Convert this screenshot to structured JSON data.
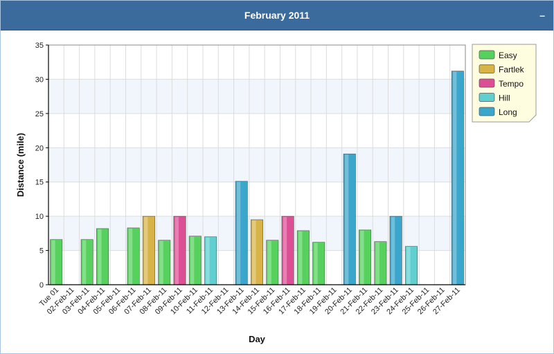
{
  "header": {
    "title": "February 2011",
    "collapse_label": "–"
  },
  "colors": {
    "Easy": "#57d15e",
    "Fartlek": "#d8b448",
    "Tempo": "#dc4f95",
    "Hill": "#5fcfcf",
    "Long": "#3aa6cc"
  },
  "chart_data": {
    "type": "bar",
    "xlabel": "Day",
    "ylabel": "Distance (mile)",
    "ylim": [
      0,
      35
    ],
    "yticks": [
      0,
      5,
      10,
      15,
      20,
      25,
      30,
      35
    ],
    "grid": true,
    "legend_position": "top-right",
    "legend": [
      "Easy",
      "Fartlek",
      "Tempo",
      "Hill",
      "Long"
    ],
    "categories": [
      "Tue 01",
      "02-Feb-11",
      "03-Feb-11",
      "04-Feb-11",
      "05-Feb-11",
      "06-Feb-11",
      "07-Feb-11",
      "08-Feb-11",
      "09-Feb-11",
      "10-Feb-11",
      "11-Feb-11",
      "12-Feb-11",
      "13-Feb-11",
      "14-Feb-11",
      "15-Feb-11",
      "16-Feb-11",
      "17-Feb-11",
      "18-Feb-11",
      "19-Feb-11",
      "20-Feb-11",
      "21-Feb-11",
      "22-Feb-11",
      "23-Feb-11",
      "24-Feb-11",
      "25-Feb-11",
      "26-Feb-11",
      "27-Feb-11"
    ],
    "bars": [
      {
        "day": "Tue 01",
        "value": 6.6,
        "type": "Easy"
      },
      {
        "day": "03-Feb-11",
        "value": 6.6,
        "type": "Easy"
      },
      {
        "day": "04-Feb-11",
        "value": 8.2,
        "type": "Easy"
      },
      {
        "day": "06-Feb-11",
        "value": 8.3,
        "type": "Easy"
      },
      {
        "day": "07-Feb-11",
        "value": 10.0,
        "type": "Fartlek"
      },
      {
        "day": "08-Feb-11",
        "value": 6.5,
        "type": "Easy"
      },
      {
        "day": "09-Feb-11",
        "value": 10.0,
        "type": "Tempo"
      },
      {
        "day": "10-Feb-11",
        "value": 7.1,
        "type": "Easy"
      },
      {
        "day": "11-Feb-11",
        "value": 7.0,
        "type": "Hill"
      },
      {
        "day": "13-Feb-11",
        "value": 15.1,
        "type": "Long"
      },
      {
        "day": "14-Feb-11",
        "value": 9.5,
        "type": "Fartlek"
      },
      {
        "day": "15-Feb-11",
        "value": 6.5,
        "type": "Easy"
      },
      {
        "day": "16-Feb-11",
        "value": 10.0,
        "type": "Tempo"
      },
      {
        "day": "17-Feb-11",
        "value": 7.9,
        "type": "Easy"
      },
      {
        "day": "18-Feb-11",
        "value": 6.2,
        "type": "Easy"
      },
      {
        "day": "20-Feb-11",
        "value": 19.1,
        "type": "Long"
      },
      {
        "day": "21-Feb-11",
        "value": 8.0,
        "type": "Easy"
      },
      {
        "day": "22-Feb-11",
        "value": 6.3,
        "type": "Easy"
      },
      {
        "day": "23-Feb-11",
        "value": 10.0,
        "type": "Long"
      },
      {
        "day": "24-Feb-11",
        "value": 5.6,
        "type": "Hill"
      },
      {
        "day": "27-Feb-11",
        "value": 31.2,
        "type": "Long"
      }
    ]
  }
}
